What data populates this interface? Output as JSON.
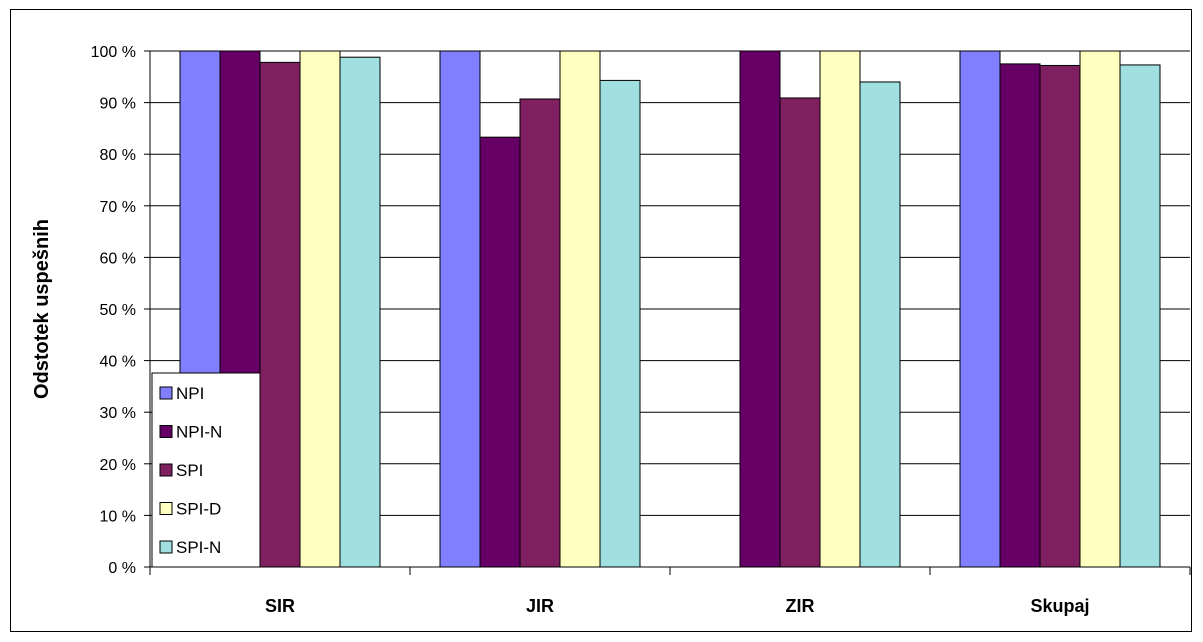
{
  "chart_data": {
    "type": "bar",
    "title": "",
    "xlabel": "",
    "ylabel": "Odstotek uspešnih",
    "categories": [
      "SIR",
      "JIR",
      "ZIR",
      "Skupaj"
    ],
    "ylim": [
      0,
      100
    ],
    "yticks": [
      "0 %",
      "10 %",
      "20 %",
      "30 %",
      "40 %",
      "50 %",
      "60 %",
      "70 %",
      "80 %",
      "90 %",
      "100 %"
    ],
    "grid": true,
    "legend_position": "bottom-left",
    "series": [
      {
        "name": "NPI",
        "color": "#8080FF",
        "values": [
          100,
          100,
          null,
          100
        ]
      },
      {
        "name": "NPI-N",
        "color": "#660066",
        "values": [
          100,
          83.3,
          100,
          97.5
        ]
      },
      {
        "name": "SPI",
        "color": "#7F2060",
        "values": [
          97.8,
          90.7,
          90.9,
          97.2
        ]
      },
      {
        "name": "SPI-D",
        "color": "#FFFFC0",
        "values": [
          100,
          100,
          100,
          100
        ]
      },
      {
        "name": "SPI-N",
        "color": "#A0E0E0",
        "values": [
          98.8,
          94.3,
          94.0,
          97.3
        ]
      }
    ]
  }
}
